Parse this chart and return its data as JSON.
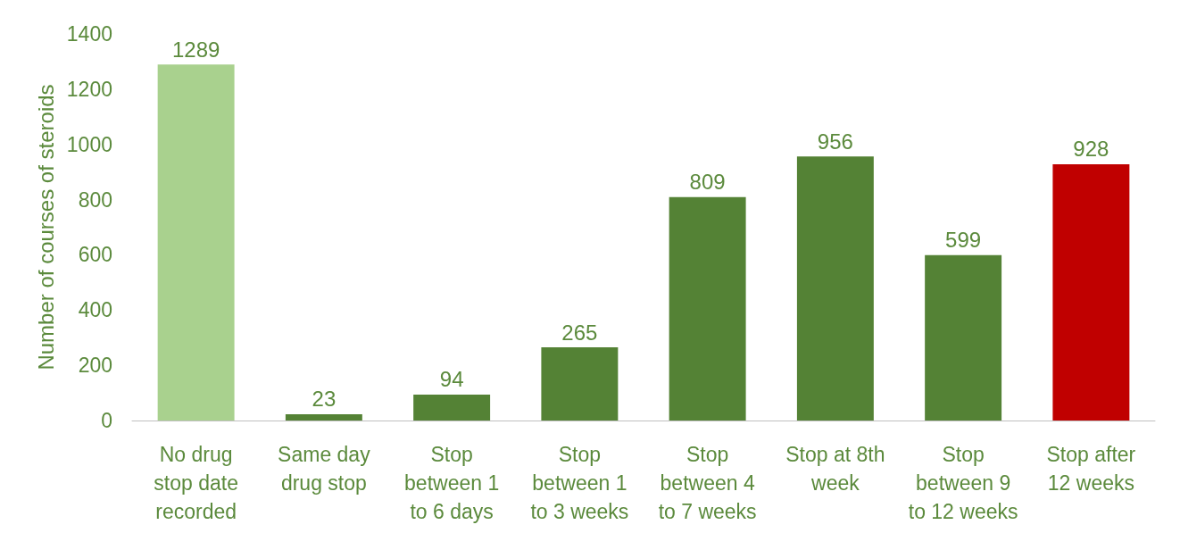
{
  "chart_data": {
    "type": "bar",
    "ylabel": "Number of courses of steroids",
    "categories": [
      "No drug\nstop date\nrecorded",
      "Same day\ndrug stop",
      "Stop\nbetween 1\nto 6 days",
      "Stop\nbetween 1\nto 3 weeks",
      "Stop\nbetween 4\nto 7 weeks",
      "Stop at 8th\nweek",
      "Stop\nbetween 9\nto 12 weeks",
      "Stop after\n12 weeks"
    ],
    "values": [
      1289,
      23,
      94,
      265,
      809,
      956,
      599,
      928
    ],
    "colors": [
      "#a9d18e",
      "#548235",
      "#548235",
      "#548235",
      "#548235",
      "#548235",
      "#548235",
      "#c00000"
    ],
    "ylim": [
      0,
      1400
    ],
    "yticks": [
      0,
      200,
      400,
      600,
      800,
      1000,
      1200,
      1400
    ],
    "data_labels": true,
    "grid": false
  }
}
